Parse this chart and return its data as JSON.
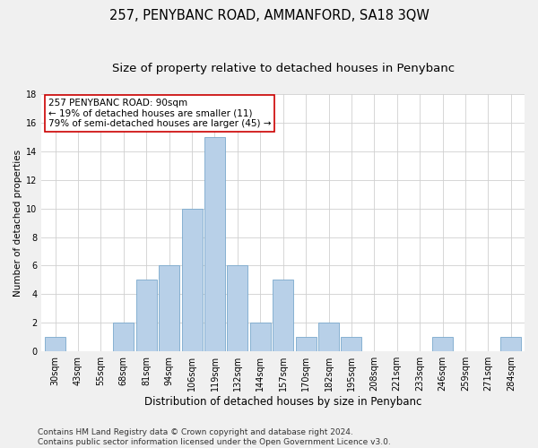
{
  "title": "257, PENYBANC ROAD, AMMANFORD, SA18 3QW",
  "subtitle": "Size of property relative to detached houses in Penybanc",
  "xlabel": "Distribution of detached houses by size in Penybanc",
  "ylabel": "Number of detached properties",
  "categories": [
    "30sqm",
    "43sqm",
    "55sqm",
    "68sqm",
    "81sqm",
    "94sqm",
    "106sqm",
    "119sqm",
    "132sqm",
    "144sqm",
    "157sqm",
    "170sqm",
    "182sqm",
    "195sqm",
    "208sqm",
    "221sqm",
    "233sqm",
    "246sqm",
    "259sqm",
    "271sqm",
    "284sqm"
  ],
  "values": [
    1,
    0,
    0,
    2,
    5,
    6,
    10,
    15,
    6,
    2,
    5,
    1,
    2,
    1,
    0,
    0,
    0,
    1,
    0,
    0,
    1
  ],
  "bar_color": "#b8d0e8",
  "bar_edge_color": "#7aa8cc",
  "annotation_box_text": "257 PENYBANC ROAD: 90sqm\n← 19% of detached houses are smaller (11)\n79% of semi-detached houses are larger (45) →",
  "ylim": [
    0,
    18
  ],
  "yticks": [
    0,
    2,
    4,
    6,
    8,
    10,
    12,
    14,
    16,
    18
  ],
  "footer_line1": "Contains HM Land Registry data © Crown copyright and database right 2024.",
  "footer_line2": "Contains public sector information licensed under the Open Government Licence v3.0.",
  "background_color": "#f0f0f0",
  "plot_background_color": "#ffffff",
  "grid_color": "#d0d0d0",
  "title_fontsize": 10.5,
  "subtitle_fontsize": 9.5,
  "xlabel_fontsize": 8.5,
  "ylabel_fontsize": 7.5,
  "tick_fontsize": 7,
  "annotation_fontsize": 7.5,
  "footer_fontsize": 6.5
}
